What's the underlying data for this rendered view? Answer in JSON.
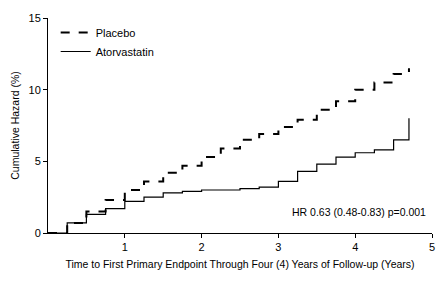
{
  "chart_data": {
    "type": "line",
    "x_label": "Time to First Primary Endpoint Through Four (4) Years of Follow-up (Years)",
    "y_label": "Cumulative Hazard (%)",
    "annotation": "HR 0.63 (0.48-0.83) p=0.001",
    "x": [
      0,
      0.25,
      0.5,
      0.75,
      1,
      1.25,
      1.5,
      1.75,
      2,
      2.25,
      2.5,
      2.75,
      3,
      3.25,
      3.5,
      3.75,
      4,
      4.25,
      4.5,
      4.7
    ],
    "series": [
      {
        "name": "Placebo",
        "color": "#000000",
        "line_style": "dash",
        "values": [
          0,
          0.7,
          1.5,
          2.3,
          3.0,
          3.6,
          4.2,
          4.7,
          5.3,
          5.9,
          6.5,
          6.9,
          7.4,
          7.9,
          8.6,
          9.2,
          10.0,
          10.5,
          11.1,
          11.5
        ]
      },
      {
        "name": "Atorvastatin",
        "color": "#000000",
        "line_style": "solid",
        "values": [
          0,
          0.7,
          1.3,
          1.7,
          2.2,
          2.5,
          2.8,
          2.9,
          3.0,
          3.0,
          3.1,
          3.2,
          3.6,
          4.3,
          4.8,
          5.3,
          5.6,
          5.8,
          6.5,
          8.0
        ]
      }
    ],
    "xlim": [
      0,
      5
    ],
    "xticks": [
      1,
      2,
      3,
      4,
      5
    ],
    "ylim": [
      0,
      15
    ],
    "yticks": [
      0,
      5,
      10,
      15
    ],
    "grid": false,
    "legend": "upper left"
  }
}
